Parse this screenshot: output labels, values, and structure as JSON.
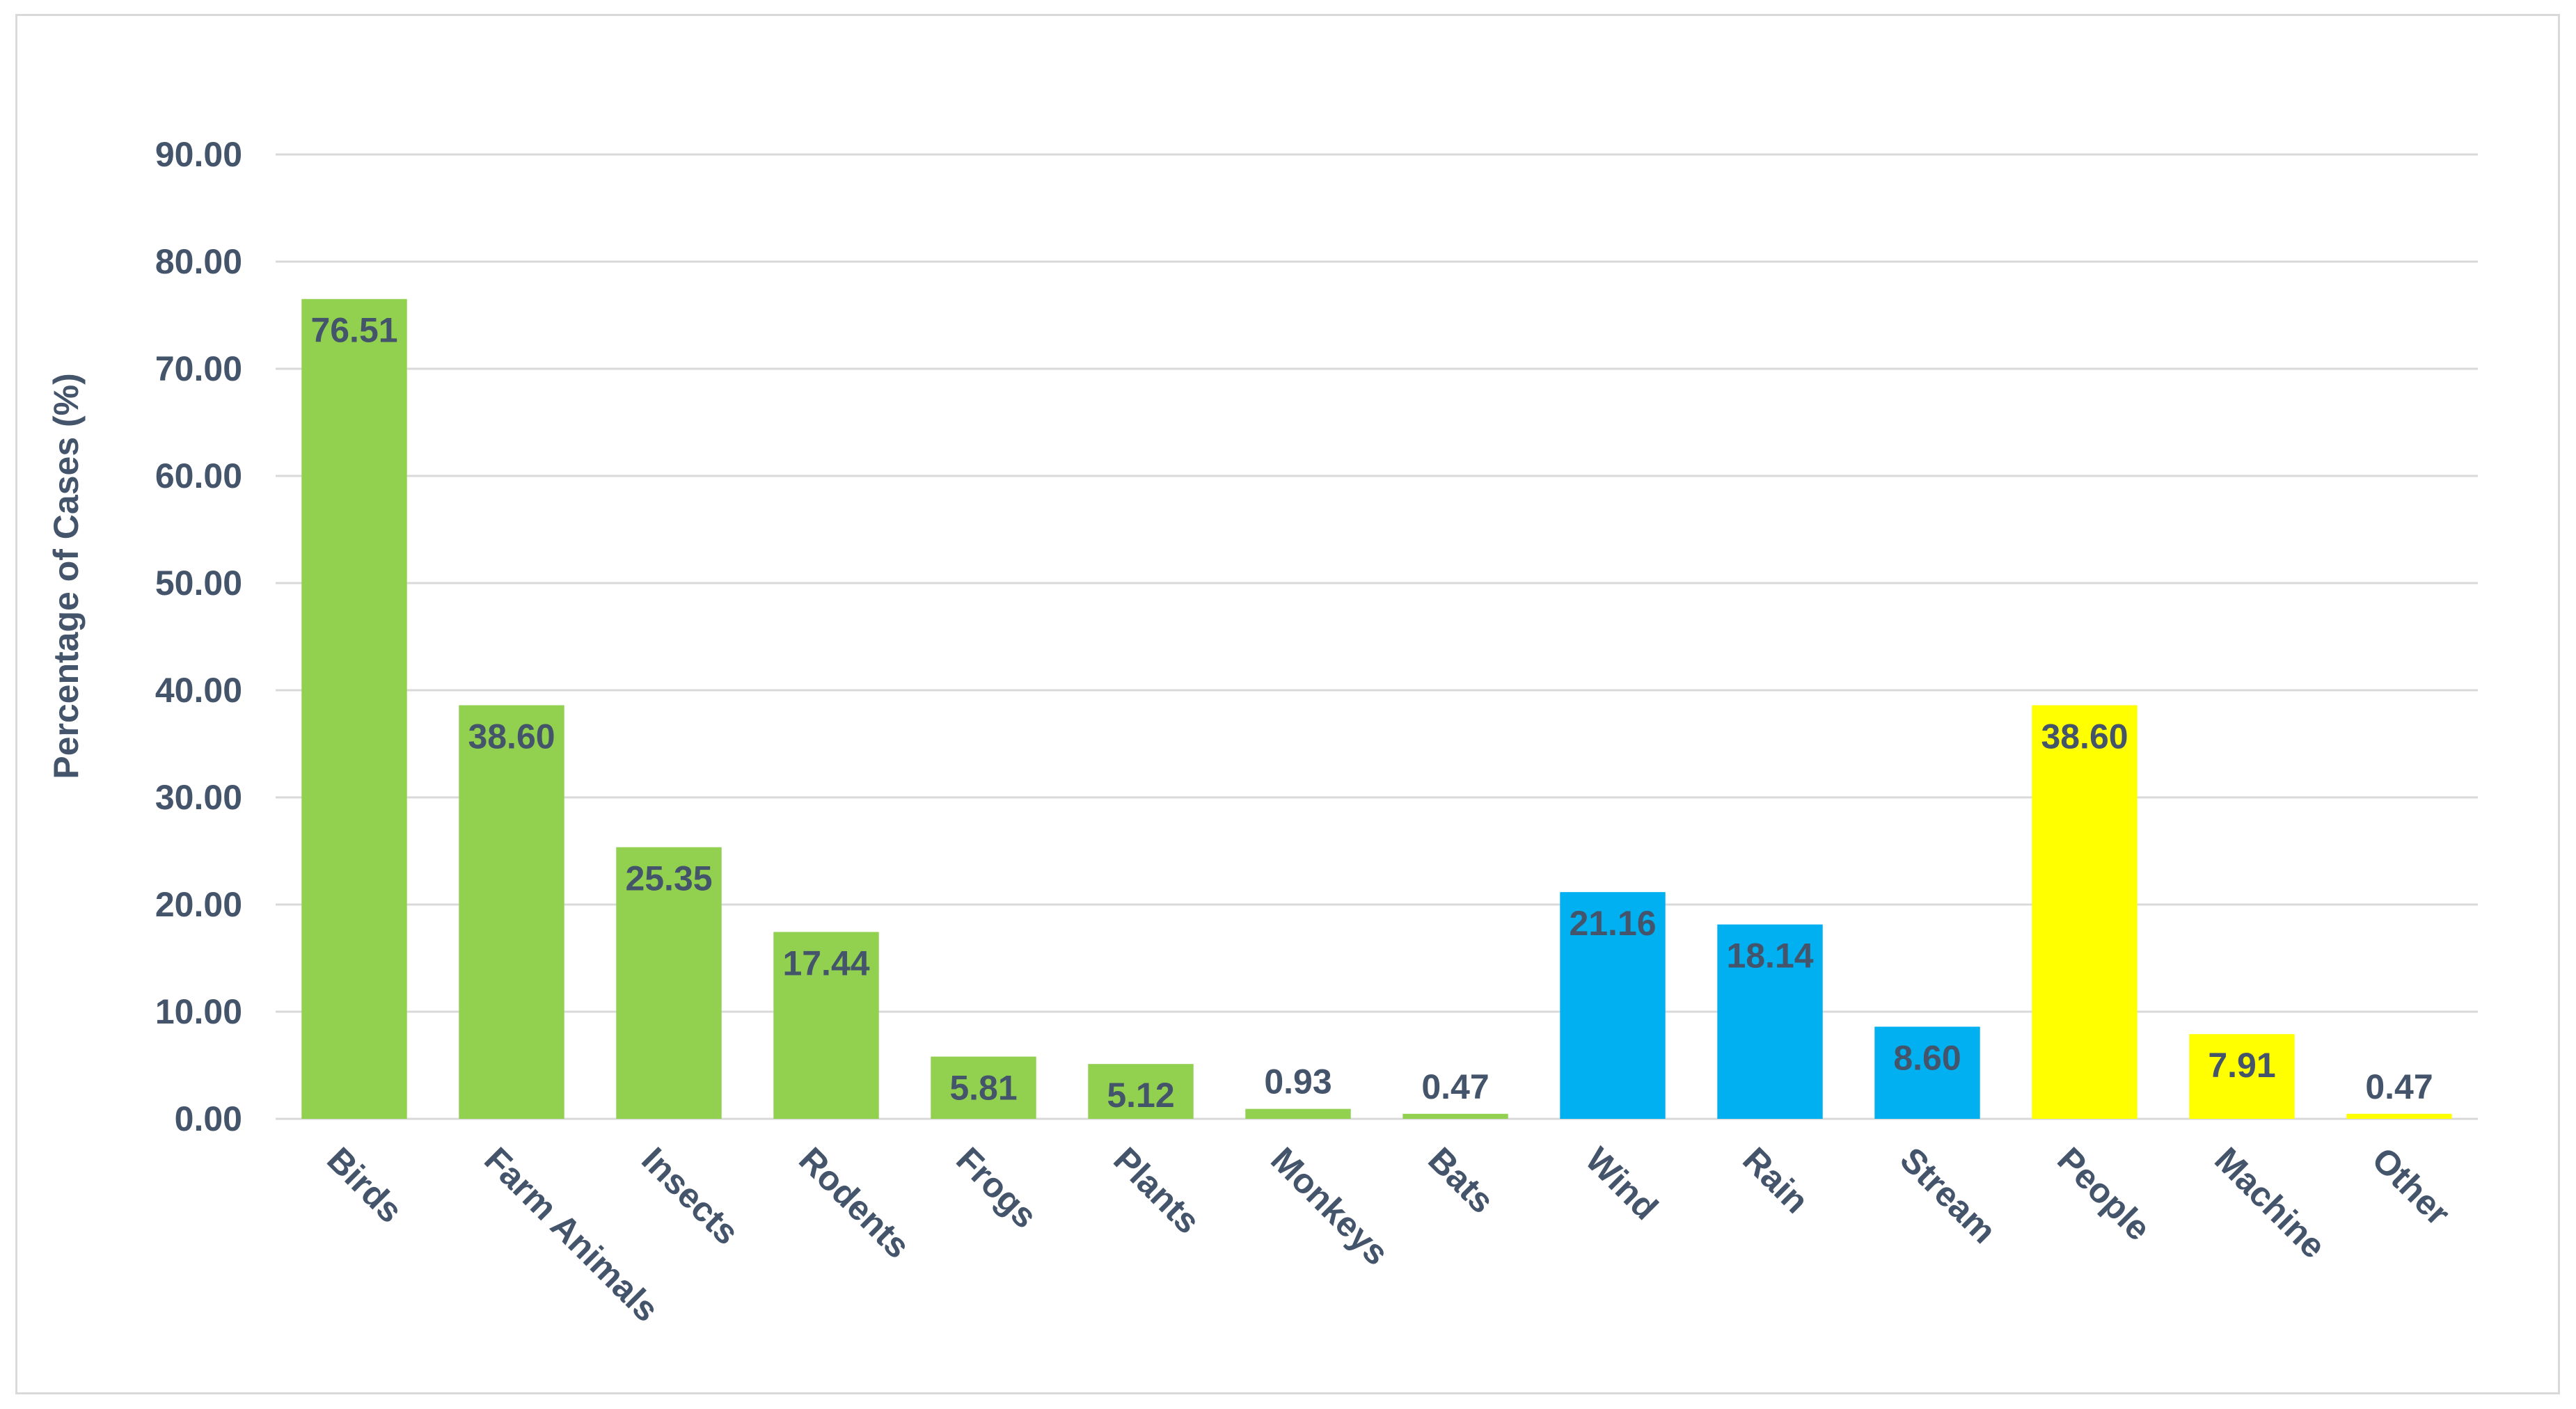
{
  "chart_data": {
    "type": "bar",
    "title": "",
    "xlabel": "",
    "ylabel": "Percentage of Cases (%)",
    "ylim": [
      0,
      90
    ],
    "yticks": [
      "0.00",
      "10.00",
      "20.00",
      "30.00",
      "40.00",
      "50.00",
      "60.00",
      "70.00",
      "80.00",
      "90.00"
    ],
    "grid": true,
    "legend": "none",
    "categories": [
      "Birds",
      "Farm Animals",
      "Insects",
      "Rodents",
      "Frogs",
      "Plants",
      "Monkeys",
      "Bats",
      "Wind",
      "Rain",
      "Stream",
      "People",
      "Machine",
      "Other"
    ],
    "values": [
      76.51,
      38.6,
      25.35,
      17.44,
      5.81,
      5.12,
      0.93,
      0.47,
      21.16,
      18.14,
      8.6,
      38.6,
      7.91,
      0.47
    ],
    "value_labels": [
      "76.51",
      "38.60",
      "25.35",
      "17.44",
      "5.81",
      "5.12",
      "0.93",
      "0.47",
      "21.16",
      "18.14",
      "8.60",
      "38.60",
      "7.91",
      "0.47"
    ],
    "bar_colors": [
      "#92d050",
      "#92d050",
      "#92d050",
      "#92d050",
      "#92d050",
      "#92d050",
      "#92d050",
      "#92d050",
      "#00b0f0",
      "#00b0f0",
      "#00b0f0",
      "#ffff00",
      "#ffff00",
      "#ffff00"
    ]
  }
}
